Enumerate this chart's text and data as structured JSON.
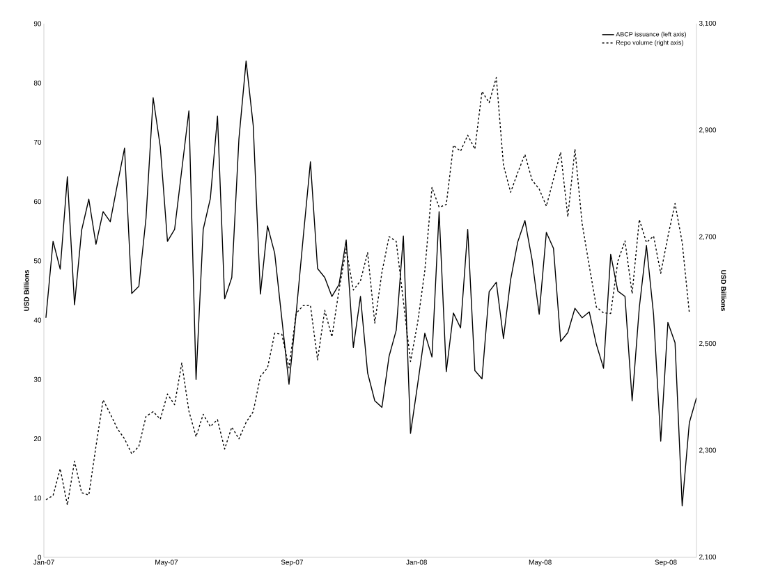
{
  "chart_data": {
    "type": "line",
    "ylabel": "USD Billions",
    "y2label": "USD Billions",
    "legend": "top right",
    "x": [
      "2007-01-03",
      "2007-01-10",
      "2007-01-17",
      "2007-01-24",
      "2007-01-31",
      "2007-02-07",
      "2007-02-14",
      "2007-02-21",
      "2007-02-28",
      "2007-03-07",
      "2007-03-14",
      "2007-03-21",
      "2007-03-28",
      "2007-04-04",
      "2007-04-11",
      "2007-04-18",
      "2007-04-25",
      "2007-05-02",
      "2007-05-09",
      "2007-05-16",
      "2007-05-23",
      "2007-05-30",
      "2007-06-06",
      "2007-06-13",
      "2007-06-20",
      "2007-06-27",
      "2007-07-04",
      "2007-07-11",
      "2007-07-18",
      "2007-07-25",
      "2007-08-01",
      "2007-08-08",
      "2007-08-15",
      "2007-08-22",
      "2007-08-29",
      "2007-09-05",
      "2007-09-12",
      "2007-09-19",
      "2007-09-26",
      "2007-10-03",
      "2007-10-10",
      "2007-10-17",
      "2007-10-24",
      "2007-10-31",
      "2007-11-07",
      "2007-11-14",
      "2007-11-21",
      "2007-11-28",
      "2007-12-05",
      "2007-12-12",
      "2007-12-19",
      "2007-12-26",
      "2008-01-02",
      "2008-01-09",
      "2008-01-16",
      "2008-01-23",
      "2008-01-30",
      "2008-02-06",
      "2008-02-13",
      "2008-02-20",
      "2008-02-27",
      "2008-03-05",
      "2008-03-12",
      "2008-03-19",
      "2008-03-26",
      "2008-04-02",
      "2008-04-09",
      "2008-04-16",
      "2008-04-23",
      "2008-04-30",
      "2008-05-07",
      "2008-05-14",
      "2008-05-21",
      "2008-05-28",
      "2008-06-04",
      "2008-06-11",
      "2008-06-18",
      "2008-06-25",
      "2008-07-02",
      "2008-07-09",
      "2008-07-16",
      "2008-07-23",
      "2008-07-30",
      "2008-08-06",
      "2008-08-13",
      "2008-08-20",
      "2008-08-27",
      "2008-09-03",
      "2008-09-10",
      "2008-09-17",
      "2008-09-24",
      "2008-10-01"
    ],
    "xlim": [
      "2007-01-01",
      "2008-10-01"
    ],
    "xticks": [
      {
        "value": "2007-01-01",
        "label": "Jan-07"
      },
      {
        "value": "2007-05-01",
        "label": "May-07"
      },
      {
        "value": "2007-09-01",
        "label": "Sep-07"
      },
      {
        "value": "2008-01-01",
        "label": "Jan-08"
      },
      {
        "value": "2008-05-01",
        "label": "May-08"
      },
      {
        "value": "2008-09-01",
        "label": "Sep-08"
      }
    ],
    "ylim": [
      0,
      90
    ],
    "yticks": [
      0,
      10,
      20,
      30,
      40,
      50,
      60,
      70,
      80,
      90
    ],
    "y2lim": [
      2100,
      3100
    ],
    "y2ticks": [
      {
        "value": 2100,
        "label": "2,100"
      },
      {
        "value": 2300,
        "label": "2,300"
      },
      {
        "value": 2500,
        "label": "2,500"
      },
      {
        "value": 2700,
        "label": "2,700"
      },
      {
        "value": 2900,
        "label": "2,900"
      },
      {
        "value": 3100,
        "label": "3,100"
      }
    ],
    "series": [
      {
        "name": "ABCP issuance (left axis)",
        "color": "#000000",
        "line_style": "solid",
        "values": [
          40.4,
          53.3,
          48.6,
          64.2,
          42.6,
          55.2,
          60.4,
          52.8,
          58.3,
          56.6,
          62.9,
          69.0,
          44.5,
          45.7,
          57.2,
          77.5,
          69.2,
          53.3,
          55.3,
          65.3,
          75.3,
          30.0,
          55.3,
          60.5,
          74.4,
          43.6,
          47.2,
          70.6,
          83.7,
          72.8,
          44.4,
          55.9,
          51.3,
          40.2,
          29.2,
          41.1,
          54.1,
          66.7,
          48.7,
          47.2,
          44.0,
          46.0,
          53.5,
          35.4,
          44.0,
          31.1,
          26.4,
          25.3,
          33.9,
          38.3,
          54.2,
          20.9,
          29.2,
          37.8,
          33.8,
          58.3,
          31.3,
          41.2,
          38.7,
          55.3,
          31.5,
          30.1,
          44.8,
          46.4,
          36.9,
          46.8,
          53.2,
          56.8,
          50.2,
          41.0,
          54.8,
          52.1,
          36.4,
          37.9,
          42.0,
          40.4,
          41.4,
          35.9,
          31.9,
          51.1,
          44.9,
          44.0,
          26.4,
          42.1,
          52.6,
          40.9,
          19.6,
          39.6,
          36.2,
          8.7,
          22.7,
          26.9
        ]
      },
      {
        "name": "Repo volume (right axis)",
        "color": "#000000",
        "line_style": "dashed",
        "axis": "y2",
        "values": [
          2208,
          2216,
          2266,
          2198,
          2280,
          2221,
          2217,
          2308,
          2395,
          2369,
          2341,
          2322,
          2294,
          2308,
          2364,
          2373,
          2359,
          2406,
          2386,
          2464,
          2374,
          2326,
          2368,
          2345,
          2358,
          2303,
          2344,
          2322,
          2353,
          2373,
          2439,
          2455,
          2520,
          2518,
          2455,
          2557,
          2572,
          2572,
          2470,
          2563,
          2513,
          2601,
          2678,
          2601,
          2618,
          2671,
          2539,
          2634,
          2701,
          2692,
          2580,
          2467,
          2540,
          2637,
          2793,
          2756,
          2761,
          2872,
          2861,
          2891,
          2865,
          2973,
          2952,
          2999,
          2835,
          2784,
          2821,
          2855,
          2807,
          2790,
          2758,
          2809,
          2859,
          2738,
          2865,
          2726,
          2646,
          2569,
          2558,
          2557,
          2655,
          2693,
          2594,
          2733,
          2690,
          2702,
          2632,
          2701,
          2763,
          2690,
          2558,
          null
        ]
      }
    ]
  }
}
